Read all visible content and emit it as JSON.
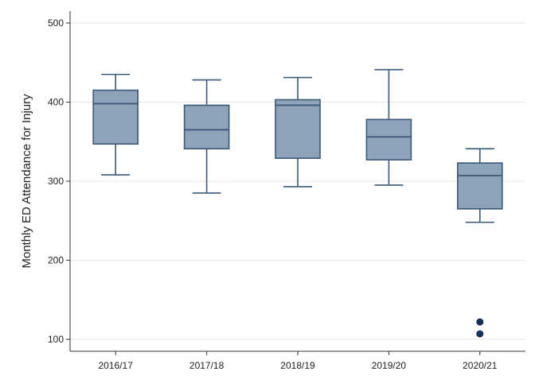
{
  "chart_data": {
    "type": "box",
    "title": "",
    "xlabel": "",
    "ylabel": "Monthly ED Attendance for Injury",
    "ylim": [
      85,
      515
    ],
    "yticks": [
      100,
      200,
      300,
      400,
      500
    ],
    "grid": true,
    "categories": [
      "2016/17",
      "2017/18",
      "2018/19",
      "2019/20",
      "2020/21"
    ],
    "boxes": [
      {
        "whisker_low": 308,
        "q1": 347,
        "median": 398,
        "q3": 415,
        "whisker_high": 435,
        "outliers": []
      },
      {
        "whisker_low": 285,
        "q1": 341,
        "median": 365,
        "q3": 396,
        "whisker_high": 428,
        "outliers": []
      },
      {
        "whisker_low": 293,
        "q1": 329,
        "median": 396,
        "q3": 403,
        "whisker_high": 431,
        "outliers": []
      },
      {
        "whisker_low": 295,
        "q1": 327,
        "median": 356,
        "q3": 378,
        "whisker_high": 441,
        "outliers": []
      },
      {
        "whisker_low": 248,
        "q1": 265,
        "median": 307,
        "q3": 323,
        "whisker_high": 341,
        "outliers": [
          122,
          107
        ]
      }
    ],
    "colors": {
      "box_fill": "#8ea2b8",
      "box_stroke": "#3b5a7a",
      "outlier": "#14305a",
      "grid": "#e6e6e6",
      "axis": "#333333"
    }
  }
}
